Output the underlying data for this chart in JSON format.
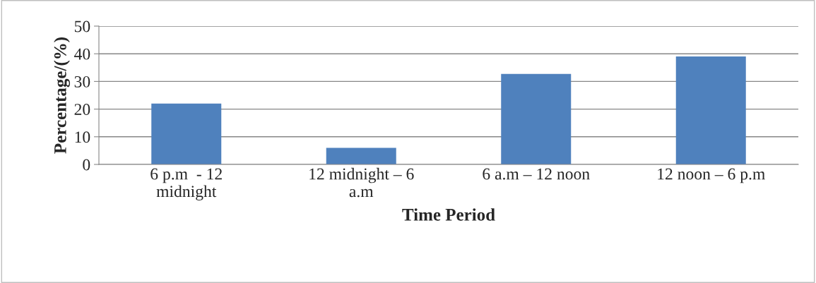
{
  "chart_data": {
    "type": "bar",
    "categories": [
      "6 p.m  - 12\nmidnight",
      "12 midnight – 6\na.m",
      "6 a.m – 12 noon",
      "12 noon – 6 p.m"
    ],
    "values": [
      22,
      6,
      32.7,
      39
    ],
    "color": "#4f81bd",
    "xlabel": "Time Period",
    "ylabel": "Percentage/(%)",
    "ylim": [
      0,
      50
    ],
    "yticks": [
      0,
      10,
      20,
      30,
      40,
      50
    ],
    "grid": "y",
    "legend": false
  }
}
